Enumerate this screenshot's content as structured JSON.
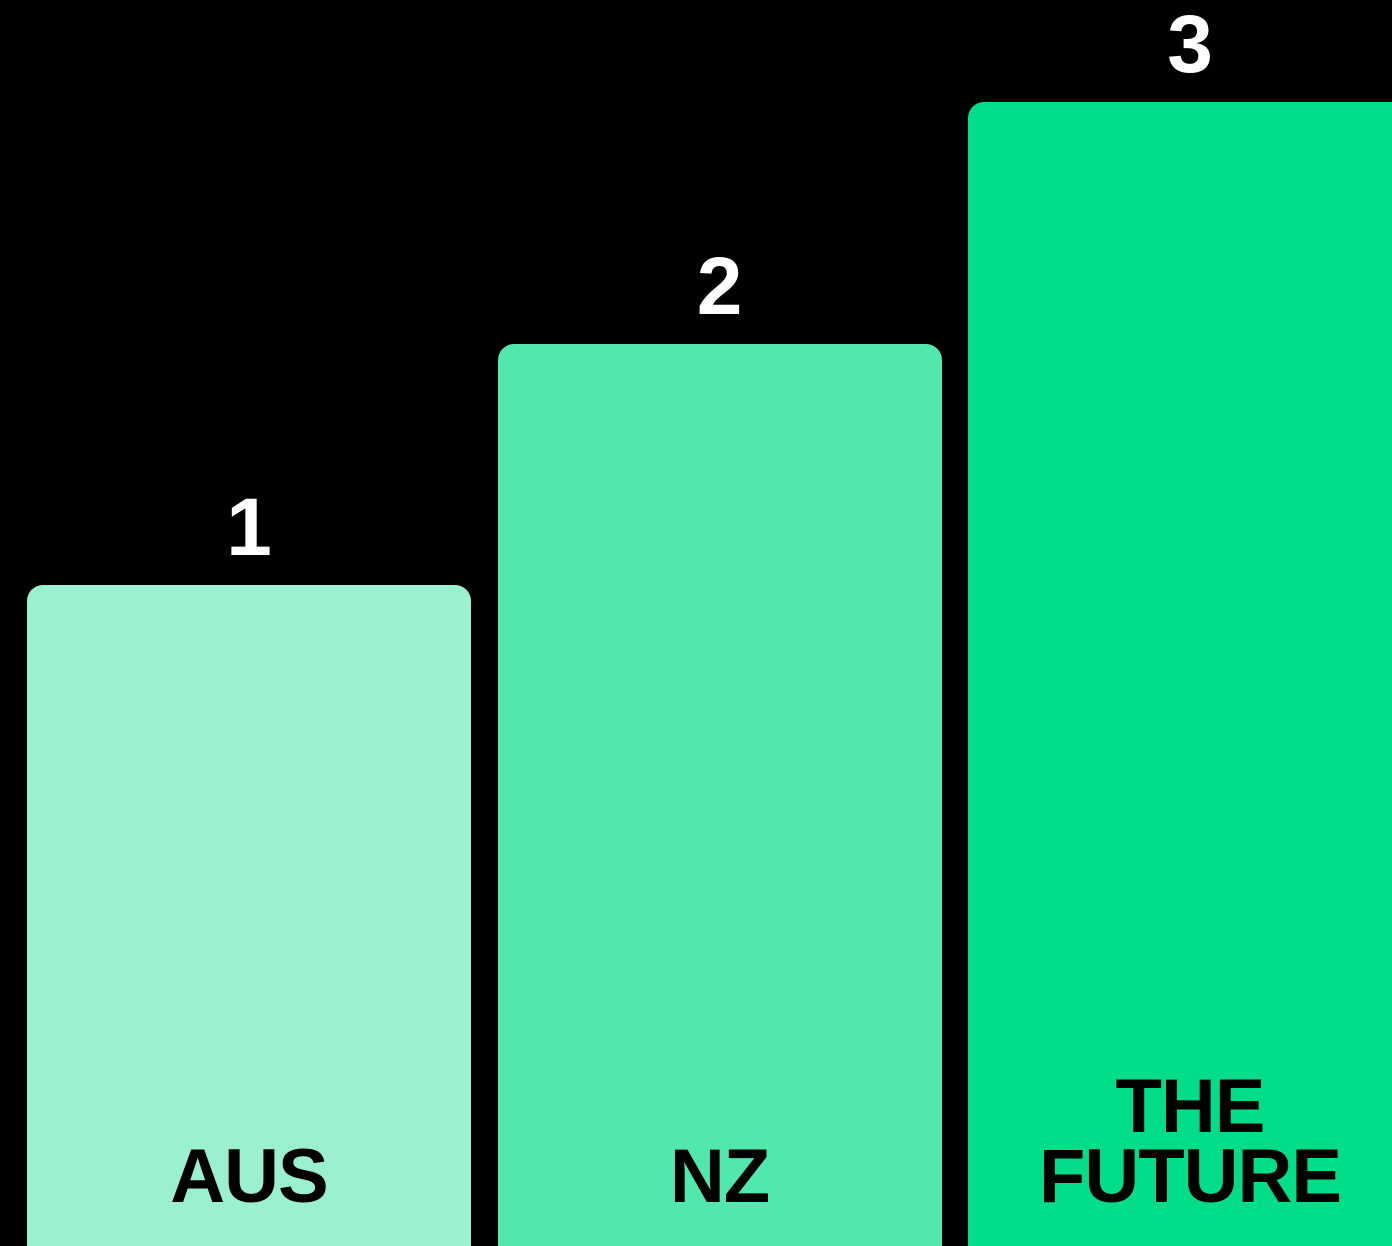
{
  "chart_data": {
    "type": "bar",
    "categories": [
      "AUS",
      "NZ",
      "THE FUTURE"
    ],
    "values": [
      1,
      2,
      3
    ],
    "colors": [
      "#9af0cf",
      "#50e8ac",
      "#00dd88"
    ],
    "ylim": [
      -1.73,
      3.42
    ]
  }
}
